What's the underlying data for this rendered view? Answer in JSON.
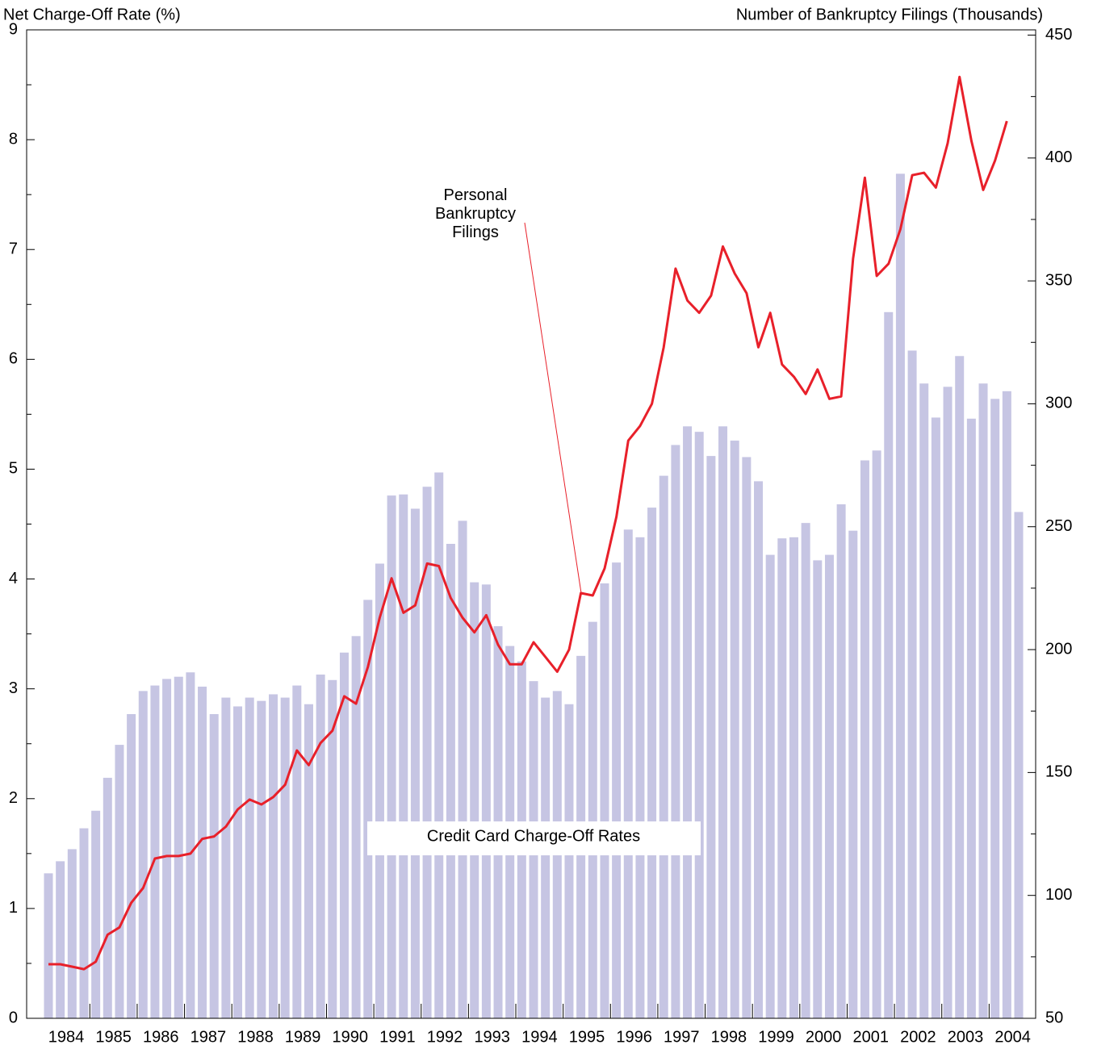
{
  "chart_data": {
    "type": "bar_line",
    "ylabel": "Net Charge-Off Rate (%)",
    "y2label": "Number of Bankruptcy Filings (Thousands)",
    "categories": [
      "1984",
      null,
      null,
      null,
      "1985",
      null,
      null,
      null,
      "1986",
      null,
      null,
      null,
      "1987",
      null,
      null,
      null,
      "1988",
      null,
      null,
      null,
      "1989",
      null,
      null,
      null,
      "1990",
      null,
      null,
      null,
      "1991",
      null,
      null,
      null,
      "1992",
      null,
      null,
      null,
      "1993",
      null,
      null,
      null,
      "1994",
      null,
      null,
      null,
      "1995",
      null,
      null,
      null,
      "1996",
      null,
      null,
      null,
      "1997",
      null,
      null,
      null,
      "1998",
      null,
      null,
      null,
      "1999",
      null,
      null,
      null,
      "2000",
      null,
      null,
      null,
      "2001",
      null,
      null,
      null,
      "2002",
      null,
      null,
      null,
      "2003",
      null,
      null,
      null,
      "2004",
      null,
      null
    ],
    "series": [
      {
        "name": "Credit Card Charge-Off Rates",
        "type": "bar",
        "color": "#c6c5e3",
        "axis": "y",
        "values": [
          1.32,
          1.43,
          1.54,
          1.73,
          1.89,
          2.19,
          2.49,
          2.77,
          2.98,
          3.03,
          3.09,
          3.11,
          3.15,
          3.02,
          2.77,
          2.92,
          2.84,
          2.92,
          2.89,
          2.95,
          2.92,
          3.03,
          2.86,
          3.13,
          3.08,
          3.33,
          3.48,
          3.81,
          4.14,
          4.76,
          4.77,
          4.64,
          4.84,
          4.97,
          4.32,
          4.53,
          3.97,
          3.95,
          3.57,
          3.39,
          3.25,
          3.07,
          2.92,
          2.98,
          2.86,
          3.3,
          3.61,
          3.96,
          4.15,
          4.45,
          4.38,
          4.65,
          4.94,
          5.22,
          5.39,
          5.34,
          5.12,
          5.39,
          5.26,
          5.11,
          4.89,
          4.22,
          4.37,
          4.38,
          4.51,
          4.17,
          4.22,
          4.68,
          4.44,
          5.08,
          5.17,
          6.43,
          7.69,
          6.08,
          5.78,
          5.47,
          5.75,
          6.03,
          5.46,
          5.78,
          5.64,
          5.71,
          4.61
        ]
      },
      {
        "name": "Personal Bankruptcy Filings",
        "type": "line",
        "color": "#e8202a",
        "axis": "y2",
        "values": [
          72,
          72,
          71,
          70,
          73,
          84,
          87,
          97,
          103,
          115,
          116,
          116,
          117,
          123,
          124,
          128,
          135,
          139,
          137,
          140,
          145,
          159,
          153,
          162,
          167,
          181,
          178,
          193,
          213,
          229,
          215,
          218,
          235,
          234,
          221,
          213,
          207,
          214,
          202,
          194,
          194,
          203,
          197,
          191,
          200,
          223,
          222,
          233,
          254,
          285,
          291,
          300,
          323,
          355,
          342,
          337,
          344,
          364,
          353,
          345,
          323,
          337,
          316,
          311,
          304,
          314,
          302,
          303,
          359,
          392,
          352,
          357,
          371,
          393,
          394,
          388,
          406,
          433,
          407,
          387,
          399,
          415,
          null
        ]
      }
    ],
    "ylim": [
      0,
      9
    ],
    "yticks": [
      0,
      1,
      2,
      3,
      4,
      5,
      6,
      7,
      8,
      9
    ],
    "y2lim": [
      50,
      450
    ],
    "y2ticks": [
      50,
      100,
      150,
      200,
      250,
      300,
      350,
      400,
      450
    ]
  }
}
